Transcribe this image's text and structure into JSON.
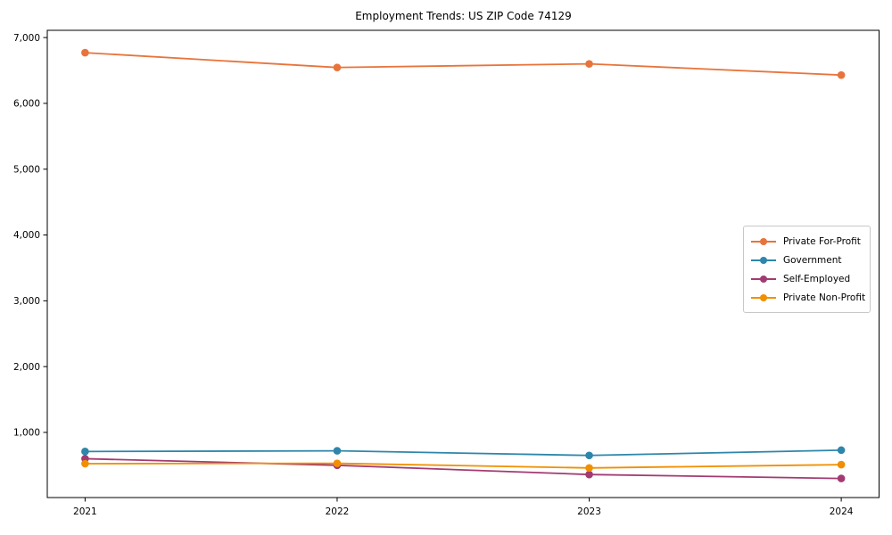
{
  "figure": {
    "background": "#ffffff",
    "text_color": "#000000",
    "axis_color": "#000000"
  },
  "chart_data": {
    "type": "line",
    "title": "Employment Trends: US ZIP Code 74129",
    "xlabel": "",
    "ylabel": "",
    "marker": "o",
    "grid": false,
    "legend_position": "center right",
    "x": [
      2021,
      2022,
      2023,
      2024
    ],
    "x_labels": [
      "2021",
      "2022",
      "2023",
      "2024"
    ],
    "xlim": [
      2020.85,
      2024.15
    ],
    "ylim": [
      10,
      7110
    ],
    "yticks": [
      {
        "value": 1000,
        "label": "1,000"
      },
      {
        "value": 2000,
        "label": "2,000"
      },
      {
        "value": 3000,
        "label": "3,000"
      },
      {
        "value": 4000,
        "label": "4,000"
      },
      {
        "value": 5000,
        "label": "5,000"
      },
      {
        "value": 6000,
        "label": "6,000"
      },
      {
        "value": 7000,
        "label": "7,000"
      }
    ],
    "series": [
      {
        "name": "Private For-Profit",
        "color": "#E8743B",
        "values": [
          6770,
          6545,
          6600,
          6430
        ]
      },
      {
        "name": "Government",
        "color": "#2E86AB",
        "values": [
          710,
          720,
          650,
          730
        ]
      },
      {
        "name": "Self-Employed",
        "color": "#A23B72",
        "values": [
          600,
          500,
          360,
          300
        ]
      },
      {
        "name": "Private Non-Profit",
        "color": "#F18F01",
        "values": [
          525,
          530,
          460,
          510
        ]
      }
    ]
  }
}
